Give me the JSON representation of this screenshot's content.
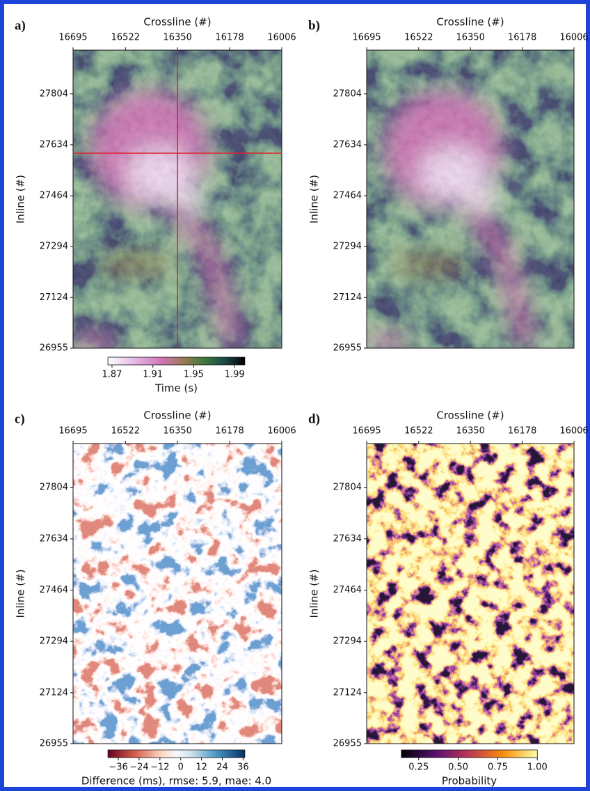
{
  "chart_data": [
    {
      "type": "heatmap",
      "label": "a)",
      "xlabel": "Crossline (#)",
      "ylabel": "Inline (#)",
      "xlim": [
        16695,
        16006
      ],
      "xticks": [
        16695,
        16522,
        16350,
        16178,
        16006
      ],
      "ylim": [
        26955,
        27950
      ],
      "yticks": [
        27804,
        27634,
        27464,
        27294,
        27124,
        26955
      ],
      "crosshair": {
        "x": 16350,
        "y": 27606,
        "color": "#e0202a"
      },
      "colorbar": {
        "label": "Time (s)",
        "clim": [
          1.866,
          2.0
        ],
        "ticks": [
          1.87,
          1.91,
          1.95,
          1.99
        ]
      }
    },
    {
      "type": "heatmap",
      "label": "b)",
      "xlabel": "Crossline (#)",
      "ylabel": "Inline (#)",
      "xlim": [
        16695,
        16006
      ],
      "xticks": [
        16695,
        16522,
        16350,
        16178,
        16006
      ],
      "ylim": [
        26955,
        27950
      ],
      "yticks": [
        27804,
        27634,
        27464,
        27294,
        27124,
        26955
      ]
    },
    {
      "type": "heatmap",
      "label": "c)",
      "xlabel": "Crossline (#)",
      "ylabel": "Inline (#)",
      "xlim": [
        16695,
        16006
      ],
      "xticks": [
        16695,
        16522,
        16350,
        16178,
        16006
      ],
      "ylim": [
        26955,
        27950
      ],
      "yticks": [
        27804,
        27634,
        27464,
        27294,
        27124,
        26955
      ],
      "colorbar": {
        "label": "Difference (ms), rmse: 5.9, mae: 4.0",
        "clim": [
          -42,
          37
        ],
        "ticks": [
          {
            "value": -36,
            "label": "−36"
          },
          {
            "value": -24,
            "label": "−24"
          },
          {
            "value": -12,
            "label": "−12"
          },
          0,
          12,
          24,
          36
        ]
      }
    },
    {
      "type": "heatmap",
      "label": "d)",
      "xlabel": "Crossline (#)",
      "ylabel": "Inline (#)",
      "xlim": [
        16695,
        16006
      ],
      "xticks": [
        16695,
        16522,
        16350,
        16178,
        16006
      ],
      "ylim": [
        26955,
        27950
      ],
      "yticks": [
        27804,
        27634,
        27464,
        27294,
        27124,
        26955
      ],
      "colorbar": {
        "label": "Probability",
        "clim": [
          0.14,
          1.0
        ],
        "ticks": [
          0.25,
          {
            "value": 0.5,
            "label": "0.50"
          },
          0.75,
          {
            "value": 1,
            "label": "1.00"
          }
        ]
      }
    }
  ]
}
